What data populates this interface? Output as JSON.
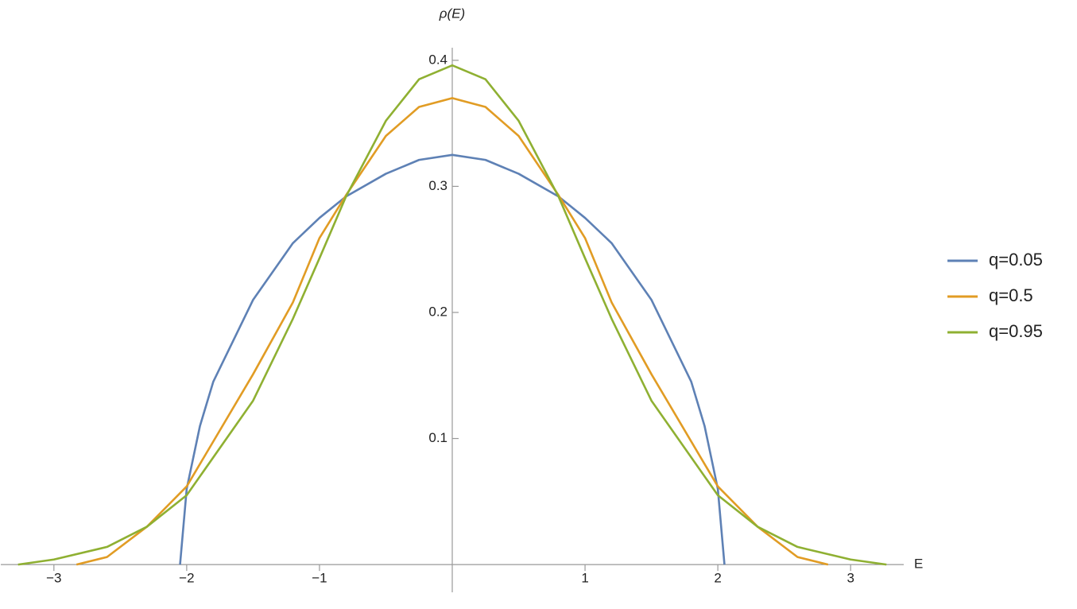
{
  "chart_data": {
    "type": "line",
    "y_label": "ρ(E)",
    "x_label": "E",
    "xlim": [
      -3.4,
      3.4
    ],
    "ylim": [
      -0.022,
      0.41
    ],
    "xticks": [
      {
        "value": -3,
        "label": "−3"
      },
      {
        "value": -2,
        "label": "−2"
      },
      {
        "value": -1,
        "label": "−1"
      },
      1,
      2,
      3
    ],
    "yticks": [
      0.1,
      0.2,
      0.3,
      0.4
    ],
    "legend": "right",
    "series": [
      {
        "name": "q=0.05",
        "color": "#5e81b5",
        "x": [
          -2.05,
          -2,
          -1.9,
          -1.8,
          -1.5,
          -1.2,
          -1,
          -0.8,
          -0.5,
          -0.25,
          0,
          0.25,
          0.5,
          0.8,
          1,
          1.2,
          1.5,
          1.8,
          1.9,
          2,
          2.05
        ],
        "values": [
          0,
          0.06,
          0.11,
          0.145,
          0.21,
          0.255,
          0.275,
          0.292,
          0.31,
          0.321,
          0.325,
          0.321,
          0.31,
          0.292,
          0.275,
          0.255,
          0.21,
          0.145,
          0.11,
          0.06,
          0
        ]
      },
      {
        "name": "q=0.5",
        "color": "#e19c24",
        "x": [
          -2.83,
          -2.6,
          -2.3,
          -2,
          -1.5,
          -1.2,
          -1,
          -0.8,
          -0.5,
          -0.25,
          0,
          0.25,
          0.5,
          0.8,
          1,
          1.2,
          1.5,
          2,
          2.3,
          2.6,
          2.83
        ],
        "values": [
          0,
          0.006,
          0.03,
          0.062,
          0.151,
          0.208,
          0.259,
          0.293,
          0.34,
          0.363,
          0.37,
          0.363,
          0.34,
          0.293,
          0.259,
          0.208,
          0.151,
          0.062,
          0.03,
          0.006,
          0
        ]
      },
      {
        "name": "q=0.95",
        "color": "#8fb032",
        "x": [
          -3.27,
          -3,
          -2.6,
          -2.3,
          -2,
          -1.5,
          -1.2,
          -1,
          -0.8,
          -0.5,
          -0.25,
          0,
          0.25,
          0.5,
          0.8,
          1,
          1.2,
          1.5,
          2,
          2.3,
          2.6,
          3,
          3.27
        ],
        "values": [
          0,
          0.004,
          0.014,
          0.03,
          0.055,
          0.13,
          0.195,
          0.243,
          0.292,
          0.352,
          0.385,
          0.396,
          0.385,
          0.352,
          0.292,
          0.243,
          0.195,
          0.13,
          0.055,
          0.03,
          0.014,
          0.004,
          0
        ]
      }
    ]
  }
}
